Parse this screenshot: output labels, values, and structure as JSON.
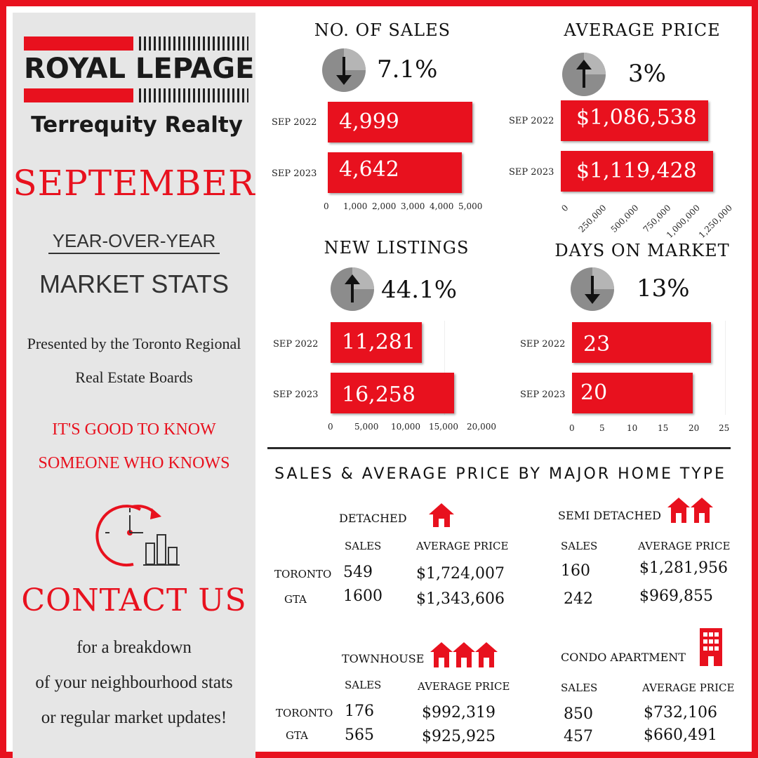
{
  "colors": {
    "accent": "#e8111e",
    "sidebar_bg": "#e6e6e6",
    "text": "#111111"
  },
  "logo": {
    "brand": "ROYAL LEPAGE",
    "sub": "Terrequity Realty"
  },
  "sidebar": {
    "month": "SEPTEMBER",
    "yoy": "YEAR-OVER-YEAR",
    "market_stats": "MARKET STATS",
    "presented_line1": "Presented by the Toronto Regional",
    "presented_line2": "Real Estate Boards",
    "tag_line1": "IT'S GOOD TO KNOW",
    "tag_line2": "SOMEONE WHO KNOWS",
    "icon": "clock-chart-icon",
    "contact": "CONTACT US",
    "breakdown_line1": "for a breakdown",
    "breakdown_line2": "of your neighbourhood stats",
    "breakdown_line3": "or regular market updates!"
  },
  "panels": {
    "sales": {
      "title": "NO. OF SALES",
      "direction": "down",
      "change": "7.1%",
      "rows": [
        {
          "label": "SEP 2022",
          "value": 4999,
          "display": "4,999"
        },
        {
          "label": "SEP 2023",
          "value": 4642,
          "display": "4,642"
        }
      ],
      "ticks": [
        "0",
        "1,000",
        "2,000",
        "3,000",
        "4,000",
        "5,000"
      ]
    },
    "price": {
      "title": "AVERAGE PRICE",
      "direction": "up",
      "change": "3%",
      "rows": [
        {
          "label": "SEP 2022",
          "value": 1086538,
          "display": "$1,086,538"
        },
        {
          "label": "SEP 2023",
          "value": 1119428,
          "display": "$1,119,428"
        }
      ],
      "ticks": [
        "0",
        "250,000",
        "500,000",
        "750,000",
        "1,000,000",
        "1,250,000"
      ]
    },
    "listings": {
      "title": "NEW LISTINGS",
      "direction": "up",
      "change": "44.1%",
      "rows": [
        {
          "label": "SEP 2022",
          "value": 11281,
          "display": "11,281"
        },
        {
          "label": "SEP 2023",
          "value": 16258,
          "display": "16,258"
        }
      ],
      "ticks": [
        "0",
        "5,000",
        "10,000",
        "15,000",
        "20,000"
      ]
    },
    "dom": {
      "title": "DAYS ON MARKET",
      "direction": "down",
      "change": "13%",
      "rows": [
        {
          "label": "SEP 2022",
          "value": 23,
          "display": "23"
        },
        {
          "label": "SEP 2023",
          "value": 20,
          "display": "20"
        }
      ],
      "ticks": [
        "0",
        "5",
        "10",
        "15",
        "20",
        "25"
      ]
    }
  },
  "home_types": {
    "title": "SALES & AVERAGE PRICE BY MAJOR HOME TYPE",
    "sales_label": "SALES",
    "avg_label": "AVERAGE PRICE",
    "toronto_label": "TORONTO",
    "gta_label": "GTA",
    "detached": {
      "name": "DETACHED",
      "icon": "house-icon",
      "toronto_sales": "549",
      "toronto_price": "$1,724,007",
      "gta_sales": "1600",
      "gta_price": "$1,343,606"
    },
    "semi": {
      "name": "SEMI DETACHED",
      "icon": "two-houses-icon",
      "toronto_sales": "160",
      "toronto_price": "$1,281,956",
      "gta_sales": "242",
      "gta_price": "$969,855"
    },
    "townhouse": {
      "name": "TOWNHOUSE",
      "icon": "three-houses-icon",
      "toronto_sales": "176",
      "toronto_price": "$992,319",
      "gta_sales": "565",
      "gta_price": "$925,925"
    },
    "condo": {
      "name": "CONDO APARTMENT",
      "icon": "apartment-building-icon",
      "toronto_sales": "850",
      "toronto_price": "$732,106",
      "gta_sales": "457",
      "gta_price": "$660,491"
    }
  }
}
